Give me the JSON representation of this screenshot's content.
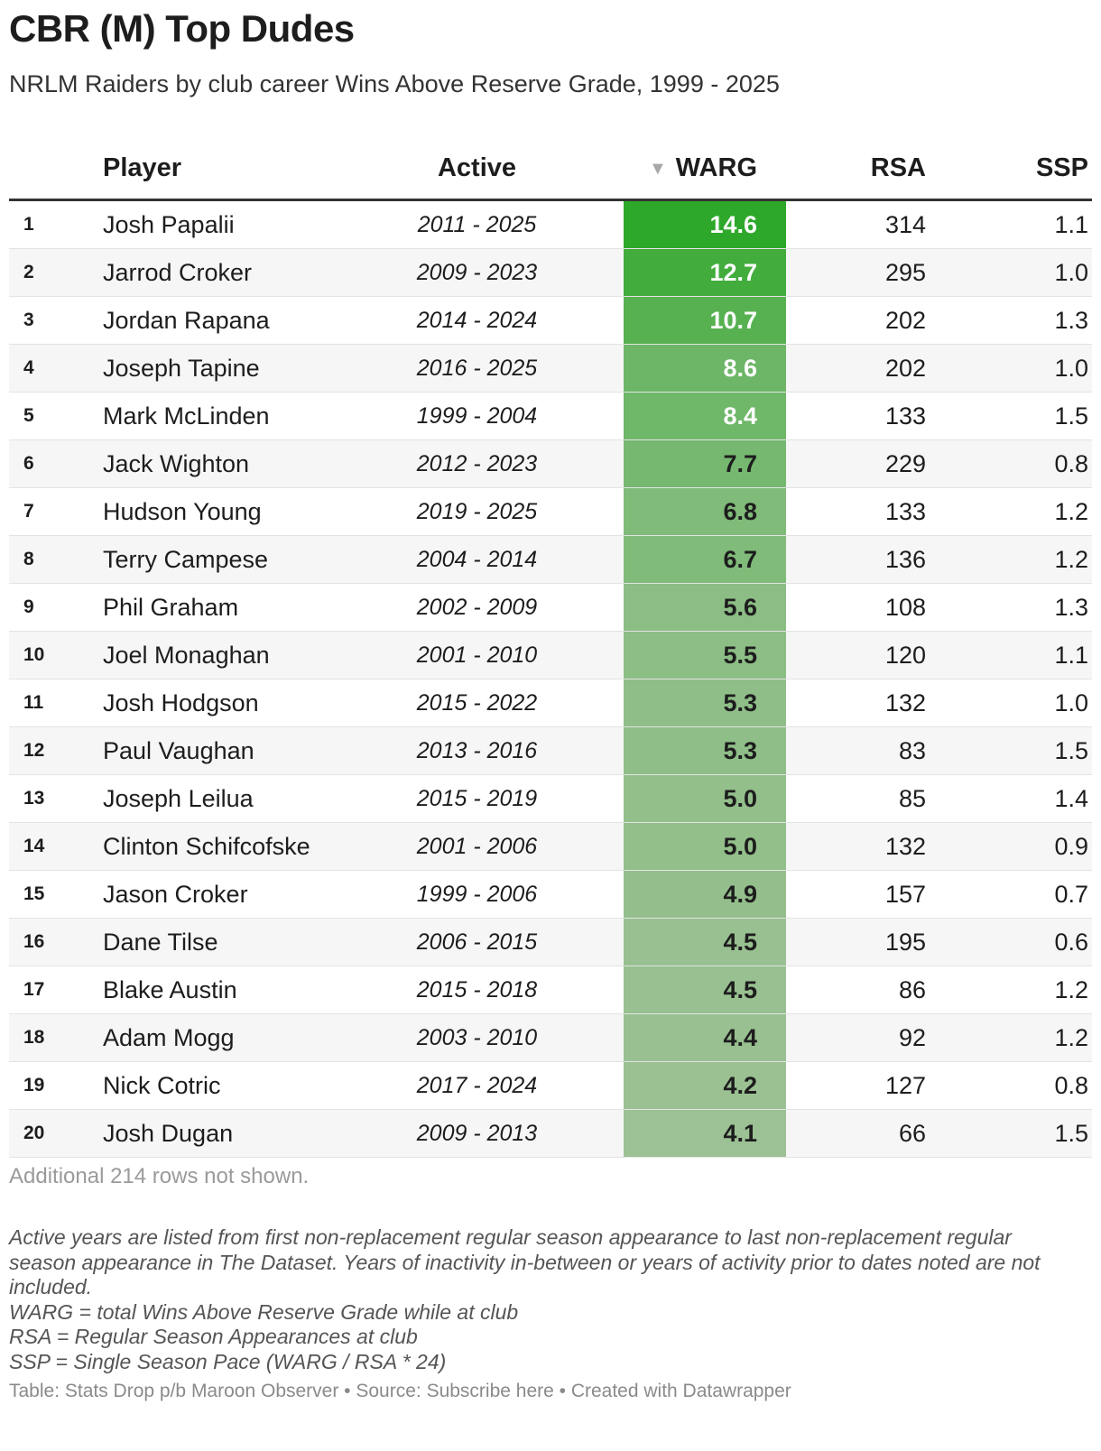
{
  "title": "CBR (M) Top Dudes",
  "subtitle": "NRLM Raiders by club career Wins Above Reserve Grade, 1999 - 2025",
  "chart_data": {
    "type": "table",
    "columns": [
      "",
      "Player",
      "Active",
      "WARG",
      "RSA",
      "SSP"
    ],
    "sorted_column": "WARG",
    "sort_direction": "descending",
    "warg_color_scale": {
      "low": "#9cc194",
      "high": "#2ea82a",
      "domain": [
        4.1,
        14.6
      ]
    },
    "rows": [
      {
        "rank": "1",
        "player": "Josh Papalii",
        "active": "2011 - 2025",
        "warg": 14.6,
        "warg_text": "14.6",
        "rsa": "314",
        "ssp": "1.1"
      },
      {
        "rank": "2",
        "player": "Jarrod Croker",
        "active": "2009 - 2023",
        "warg": 12.7,
        "warg_text": "12.7",
        "rsa": "295",
        "ssp": "1.0"
      },
      {
        "rank": "3",
        "player": "Jordan Rapana",
        "active": "2014 - 2024",
        "warg": 10.7,
        "warg_text": "10.7",
        "rsa": "202",
        "ssp": "1.3"
      },
      {
        "rank": "4",
        "player": "Joseph Tapine",
        "active": "2016 - 2025",
        "warg": 8.6,
        "warg_text": "8.6",
        "rsa": "202",
        "ssp": "1.0"
      },
      {
        "rank": "5",
        "player": "Mark McLinden",
        "active": "1999 - 2004",
        "warg": 8.4,
        "warg_text": "8.4",
        "rsa": "133",
        "ssp": "1.5"
      },
      {
        "rank": "6",
        "player": "Jack Wighton",
        "active": "2012 - 2023",
        "warg": 7.7,
        "warg_text": "7.7",
        "rsa": "229",
        "ssp": "0.8"
      },
      {
        "rank": "7",
        "player": "Hudson Young",
        "active": "2019 - 2025",
        "warg": 6.8,
        "warg_text": "6.8",
        "rsa": "133",
        "ssp": "1.2"
      },
      {
        "rank": "8",
        "player": "Terry Campese",
        "active": "2004 - 2014",
        "warg": 6.7,
        "warg_text": "6.7",
        "rsa": "136",
        "ssp": "1.2"
      },
      {
        "rank": "9",
        "player": "Phil Graham",
        "active": "2002 - 2009",
        "warg": 5.6,
        "warg_text": "5.6",
        "rsa": "108",
        "ssp": "1.3"
      },
      {
        "rank": "10",
        "player": "Joel Monaghan",
        "active": "2001 - 2010",
        "warg": 5.5,
        "warg_text": "5.5",
        "rsa": "120",
        "ssp": "1.1"
      },
      {
        "rank": "11",
        "player": "Josh Hodgson",
        "active": "2015 - 2022",
        "warg": 5.3,
        "warg_text": "5.3",
        "rsa": "132",
        "ssp": "1.0"
      },
      {
        "rank": "12",
        "player": "Paul Vaughan",
        "active": "2013 - 2016",
        "warg": 5.3,
        "warg_text": "5.3",
        "rsa": "83",
        "ssp": "1.5"
      },
      {
        "rank": "13",
        "player": "Joseph Leilua",
        "active": "2015 - 2019",
        "warg": 5.0,
        "warg_text": "5.0",
        "rsa": "85",
        "ssp": "1.4"
      },
      {
        "rank": "14",
        "player": "Clinton Schifcofske",
        "active": "2001 - 2006",
        "warg": 5.0,
        "warg_text": "5.0",
        "rsa": "132",
        "ssp": "0.9"
      },
      {
        "rank": "15",
        "player": "Jason Croker",
        "active": "1999 - 2006",
        "warg": 4.9,
        "warg_text": "4.9",
        "rsa": "157",
        "ssp": "0.7"
      },
      {
        "rank": "16",
        "player": "Dane Tilse",
        "active": "2006 - 2015",
        "warg": 4.5,
        "warg_text": "4.5",
        "rsa": "195",
        "ssp": "0.6"
      },
      {
        "rank": "17",
        "player": "Blake Austin",
        "active": "2015 - 2018",
        "warg": 4.5,
        "warg_text": "4.5",
        "rsa": "86",
        "ssp": "1.2"
      },
      {
        "rank": "18",
        "player": "Adam Mogg",
        "active": "2003 - 2010",
        "warg": 4.4,
        "warg_text": "4.4",
        "rsa": "92",
        "ssp": "1.2"
      },
      {
        "rank": "19",
        "player": "Nick Cotric",
        "active": "2017 - 2024",
        "warg": 4.2,
        "warg_text": "4.2",
        "rsa": "127",
        "ssp": "0.8"
      },
      {
        "rank": "20",
        "player": "Josh Dugan",
        "active": "2009 - 2013",
        "warg": 4.1,
        "warg_text": "4.1",
        "rsa": "66",
        "ssp": "1.5"
      }
    ]
  },
  "rows_not_shown": "Additional 214 rows not shown.",
  "footnotes": [
    "Active years are listed from first non-replacement regular season appearance to last non-replacement regular season appearance in The Dataset. Years of inactivity in-between or years of activity prior to dates noted are not included.",
    "WARG = total Wins Above Reserve Grade while at club",
    "RSA = Regular Season Appearances at club",
    "SSP = Single Season Pace (WARG / RSA * 24)"
  ],
  "byline": "Table: Stats Drop p/b Maroon Observer • Source: Subscribe here • Created with Datawrapper"
}
